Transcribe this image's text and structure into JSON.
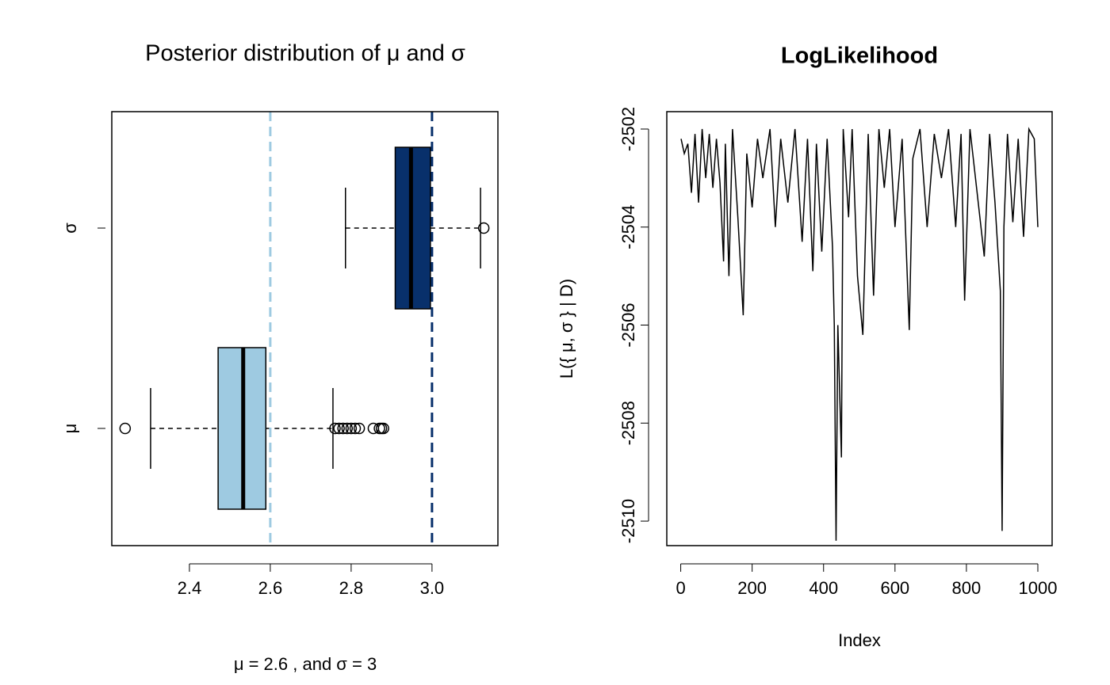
{
  "chart_data": [
    {
      "type": "boxplot",
      "title": "Posterior distribution of μ and σ",
      "subtitle": "μ = 2.6 , and σ = 3",
      "categories": [
        "μ",
        "σ"
      ],
      "boxes": [
        {
          "color": "#9ecae1",
          "whisker_low": 2.304,
          "q1": 2.471,
          "median": 2.533,
          "q3": 2.589,
          "whisker_high": 2.755,
          "outliers": [
            2.241,
            2.76,
            2.77,
            2.78,
            2.79,
            2.8,
            2.81,
            2.82,
            2.855,
            2.87,
            2.875,
            2.88
          ]
        },
        {
          "color": "#08306b",
          "whisker_low": 2.786,
          "q1": 2.909,
          "median": 2.948,
          "q3": 2.996,
          "whisker_high": 3.12,
          "outliers": [
            3.128
          ]
        }
      ],
      "reference_lines": [
        {
          "value": 2.6,
          "color": "#9ecae1"
        },
        {
          "value": 3,
          "color": "#08306b"
        }
      ],
      "xlim": [
        2.208,
        3.163
      ],
      "xticks": [
        2.4,
        2.6,
        2.8,
        {
          "value": 3,
          "label": "3.0"
        }
      ]
    },
    {
      "type": "line",
      "title": "LogLikelihood",
      "xlabel": "Index",
      "ylabel": "L({ μ, σ } | D)",
      "color": "#000000",
      "x": [
        1,
        10,
        20,
        30,
        40,
        50,
        60,
        70,
        80,
        90,
        100,
        110,
        120,
        125,
        135,
        145,
        160,
        175,
        185,
        200,
        215,
        230,
        250,
        265,
        280,
        300,
        320,
        340,
        355,
        370,
        380,
        395,
        410,
        425,
        430,
        435,
        440,
        450,
        455,
        470,
        480,
        495,
        510,
        525,
        540,
        555,
        570,
        585,
        600,
        620,
        640,
        650,
        670,
        690,
        710,
        730,
        750,
        770,
        785,
        795,
        810,
        830,
        850,
        865,
        880,
        895,
        900,
        905,
        915,
        930,
        945,
        960,
        975,
        990,
        1000
      ],
      "values": [
        -2502.2,
        -2502.5,
        -2502.3,
        -2503.3,
        -2502.1,
        -2503.5,
        -2502.0,
        -2503.0,
        -2502.1,
        -2503.2,
        -2502.2,
        -2503.1,
        -2504.7,
        -2502.3,
        -2505.0,
        -2502.0,
        -2503.8,
        -2505.8,
        -2502.5,
        -2503.6,
        -2502.2,
        -2503.0,
        -2502.0,
        -2504.0,
        -2502.2,
        -2503.5,
        -2502.0,
        -2504.3,
        -2502.2,
        -2504.9,
        -2502.3,
        -2504.5,
        -2502.2,
        -2504.4,
        -2506.0,
        -2510.4,
        -2506.0,
        -2508.7,
        -2502.0,
        -2503.8,
        -2502.0,
        -2505.0,
        -2506.2,
        -2502.1,
        -2505.4,
        -2502.0,
        -2503.2,
        -2502.0,
        -2504.0,
        -2502.2,
        -2506.1,
        -2502.6,
        -2502.0,
        -2504.0,
        -2502.1,
        -2503.0,
        -2502.0,
        -2504.0,
        -2502.1,
        -2505.5,
        -2502.0,
        -2503.3,
        -2504.6,
        -2502.1,
        -2503.5,
        -2505.3,
        -2510.2,
        -2504.0,
        -2502.1,
        -2503.9,
        -2502.2,
        -2504.2,
        -2502.0,
        -2502.2,
        -2504.0
      ],
      "xlim": [
        -39,
        1040
      ],
      "xticks": [
        0,
        200,
        400,
        600,
        800,
        1000
      ],
      "ylim": [
        -2510.5,
        -2501.645
      ],
      "yticks": [
        -2502,
        -2504,
        -2506,
        -2508,
        -2510
      ]
    }
  ]
}
